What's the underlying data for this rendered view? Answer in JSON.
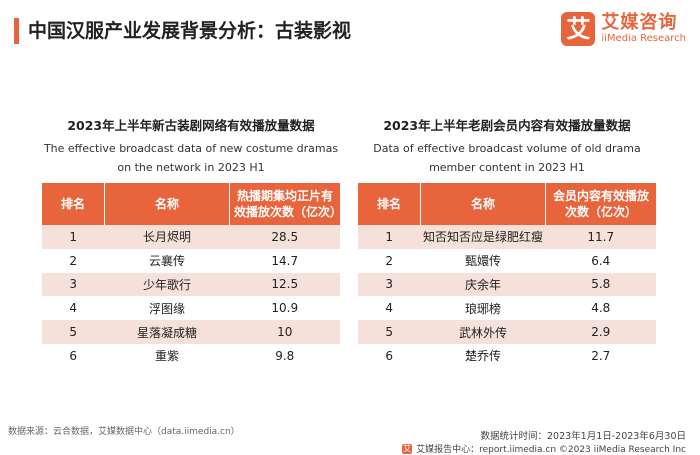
{
  "page": {
    "title": "中国汉服产业发展背景分析：古装影视"
  },
  "logo": {
    "mark": "艾",
    "cn": "艾媒咨询",
    "en": "iiMedia Research"
  },
  "left_table": {
    "title_cn": "2023年上半年新古装剧网络有效播放量数据",
    "title_en": "The effective broadcast data of new costume dramas on the network in 2023 H1",
    "headers": [
      "排名",
      "名称",
      "热播期集均正片有效播放次数（亿次）"
    ],
    "rows": [
      [
        "1",
        "长月烬明",
        "28.5"
      ],
      [
        "2",
        "云襄传",
        "14.7"
      ],
      [
        "3",
        "少年歌行",
        "12.5"
      ],
      [
        "4",
        "浮图缘",
        "10.9"
      ],
      [
        "5",
        "星落凝成糖",
        "10"
      ],
      [
        "6",
        "重紫",
        "9.8"
      ]
    ]
  },
  "right_table": {
    "title_cn": "2023年上半年老剧会员内容有效播放量数据",
    "title_en": "Data of effective broadcast volume of old drama member content in 2023 H1",
    "headers": [
      "排名",
      "名称",
      "会员内容有效播放次数（亿次）"
    ],
    "rows": [
      [
        "1",
        "知否知否应是绿肥红瘦",
        "11.7"
      ],
      [
        "2",
        "甄嬛传",
        "6.4"
      ],
      [
        "3",
        "庆余年",
        "5.8"
      ],
      [
        "4",
        "琅琊榜",
        "4.8"
      ],
      [
        "5",
        "武林外传",
        "2.9"
      ],
      [
        "6",
        "楚乔传",
        "2.7"
      ]
    ]
  },
  "footer": {
    "source": "数据来源：云合数据，艾媒数据中心（data.iimedia.cn）",
    "period": "数据统计时间：2023年1月1日-2023年6月30日",
    "copyright_mark": "艾",
    "copyright": "艾媒报告中心：report.iimedia.cn ©2023 iiMedia Research Inc"
  },
  "colors": {
    "accent": "#e8643c",
    "row_tint": "#f6e1da"
  }
}
